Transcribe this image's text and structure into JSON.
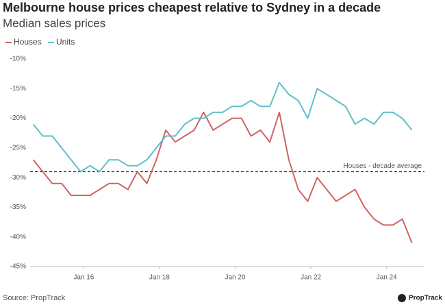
{
  "chart_data": {
    "type": "line",
    "title": "Melbourne house prices cheapest relative to Sydney in a decade",
    "subtitle": "Median sales prices",
    "source": "Source: PropTrack",
    "brand": "PropTrack",
    "x": [
      "2014-09",
      "2014-12",
      "2015-03",
      "2015-06",
      "2015-09",
      "2015-12",
      "2016-03",
      "2016-06",
      "2016-09",
      "2016-12",
      "2017-03",
      "2017-06",
      "2017-09",
      "2017-12",
      "2018-03",
      "2018-06",
      "2018-09",
      "2018-12",
      "2019-03",
      "2019-06",
      "2019-09",
      "2019-12",
      "2020-03",
      "2020-06",
      "2020-09",
      "2020-12",
      "2021-03",
      "2021-06",
      "2021-09",
      "2021-12",
      "2022-03",
      "2022-06",
      "2022-09",
      "2022-12",
      "2023-03",
      "2023-06",
      "2023-09",
      "2023-12",
      "2024-03",
      "2024-06",
      "2024-09"
    ],
    "series": [
      {
        "name": "Houses",
        "color": "#cd6460",
        "values": [
          -27,
          -29,
          -31,
          -31,
          -33,
          -33,
          -33,
          -32,
          -31,
          -31,
          -32,
          -29,
          -31,
          -27,
          -22,
          -24,
          -23,
          -22,
          -19,
          -22,
          -21,
          -20,
          -20,
          -23,
          -22,
          -24,
          -19,
          -27,
          -32,
          -34,
          -30,
          -32,
          -34,
          -33,
          -32,
          -35,
          -37,
          -38,
          -38,
          -37,
          -41
        ]
      },
      {
        "name": "Units",
        "color": "#5ebfc8",
        "values": [
          -21,
          -23,
          -23,
          -25,
          -27,
          -29,
          -28,
          -29,
          -27,
          -27,
          -28,
          -28,
          -27,
          -25,
          -23,
          -23,
          -21,
          -20,
          -20,
          -19,
          -19,
          -18,
          -18,
          -17,
          -18,
          -18,
          -14,
          -16,
          -17,
          -20,
          -15,
          -16,
          -17,
          -18,
          -21,
          -20,
          -21,
          -19,
          -19,
          -20,
          -22
        ]
      }
    ],
    "xlim": [
      "2014-08",
      "2025-01"
    ],
    "xticks": [
      {
        "value": "2016-01",
        "label": "Jan 16"
      },
      {
        "value": "2018-01",
        "label": "Jan 18"
      },
      {
        "value": "2020-01",
        "label": "Jan 20"
      },
      {
        "value": "2022-01",
        "label": "Jan 22"
      },
      {
        "value": "2024-01",
        "label": "Jan 24"
      }
    ],
    "ylim": [
      -45,
      -10
    ],
    "yticks": [
      {
        "value": -10,
        "label": "-10%"
      },
      {
        "value": -15,
        "label": "-15%"
      },
      {
        "value": -20,
        "label": "-20%"
      },
      {
        "value": -25,
        "label": "-25%"
      },
      {
        "value": -30,
        "label": "-30%"
      },
      {
        "value": -35,
        "label": "-35%"
      },
      {
        "value": -40,
        "label": "-40%"
      },
      {
        "value": -45,
        "label": "-45%"
      }
    ],
    "reference_line": {
      "value": -29,
      "label": "Houses - decade average"
    },
    "grid": false,
    "legend": "top-left"
  }
}
